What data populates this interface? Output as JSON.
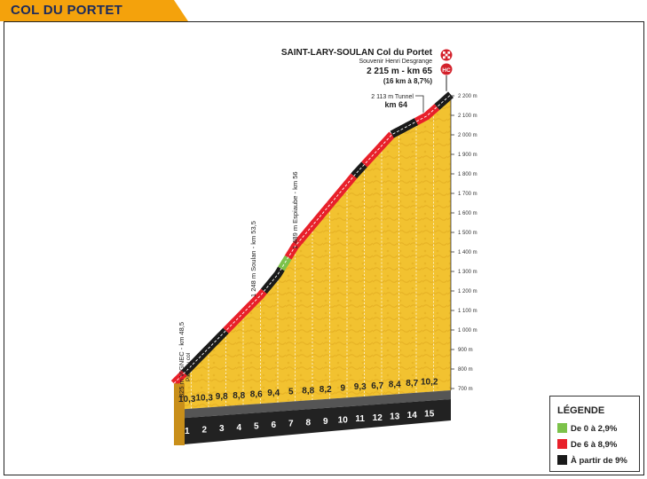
{
  "header": {
    "title": "COL DU PORTET"
  },
  "finish": {
    "name": "SAINT-LARY-SOULAN Col du Portet",
    "subtitle": "Souvenir Henri Desgrange",
    "altitude_km": "2 215 m - km 65",
    "climb": "(16 km à 8,7%)",
    "finish_icon": "checkered-flag-icon",
    "hc_badge": "HC"
  },
  "annotations": [
    {
      "id": "vignec",
      "km": 48.5,
      "altitude": 825,
      "label_main": "825 m VIGNEC - km 48,5",
      "label_sub": "Pied du col"
    },
    {
      "id": "soulan",
      "km": 53.5,
      "altitude": 1248,
      "label_main": "1 248 m Soulan - km 53,5"
    },
    {
      "id": "espiaube",
      "km": 56,
      "altitude": 1489,
      "label_main": "1 489 m Espiaube - km 56"
    },
    {
      "id": "tunnel",
      "km": 64,
      "altitude": 2113,
      "label_main": "2 113 m Tunnel",
      "label_km": "km 64"
    }
  ],
  "legend": {
    "title": "LÉGENDE",
    "items": [
      {
        "label": "De 0 à 2,9%",
        "color": "#7cc24a"
      },
      {
        "label": "De 6 à 8,9%",
        "color": "#e8202a"
      },
      {
        "label": "À partir de 9%",
        "color": "#1a1a1a"
      }
    ]
  },
  "colors": {
    "mountain": "#f2c230",
    "mountain_dark": "#e0a91e",
    "base_front": "#222222",
    "base_top": "#555555",
    "start_block": "#c98f1a"
  },
  "chart_data": {
    "type": "area",
    "title": "COL DU PORTET",
    "x_ticks": [
      "1",
      "2",
      "3",
      "4",
      "5",
      "6",
      "7",
      "8",
      "9",
      "10",
      "11",
      "12",
      "13",
      "14",
      "15"
    ],
    "y_ticks": [
      "700 m",
      "800 m",
      "900 m",
      "1 000 m",
      "1 100 m",
      "1 200 m",
      "1 300 m",
      "1 400 m",
      "1 500 m",
      "1 600 m",
      "1 700 m",
      "1 800 m",
      "1 900 m",
      "2 000 m",
      "2 100 m",
      "2 200 m"
    ],
    "y_range": [
      700,
      2200
    ],
    "x_range_km": [
      0,
      16
    ],
    "gradients": [
      "10,3",
      "10,3",
      "9,8",
      "8,8",
      "8,6",
      "9,4",
      "5",
      "8,8",
      "8,2",
      "9",
      "9,3",
      "6,7",
      "8,4",
      "8,7",
      "10,2"
    ],
    "profile": [
      {
        "km": 0,
        "alt": 825
      },
      {
        "km": 5,
        "alt": 1248
      },
      {
        "km": 6,
        "alt": 1350
      },
      {
        "km": 7,
        "alt": 1489
      },
      {
        "km": 10.5,
        "alt": 1840
      },
      {
        "km": 12.6,
        "alt": 2030
      },
      {
        "km": 14.6,
        "alt": 2113
      },
      {
        "km": 16,
        "alt": 2215
      }
    ],
    "segments": [
      {
        "from": 0,
        "to": 0.6,
        "color": "#e8202a"
      },
      {
        "from": 0.6,
        "to": 3.0,
        "color": "#1a1a1a"
      },
      {
        "from": 3.0,
        "to": 5.2,
        "color": "#e8202a"
      },
      {
        "from": 5.2,
        "to": 6.2,
        "color": "#1a1a1a"
      },
      {
        "from": 6.2,
        "to": 6.6,
        "color": "#7cc24a"
      },
      {
        "from": 6.6,
        "to": 7.2,
        "color": "#e8202a"
      },
      {
        "from": 7.2,
        "to": 9.0,
        "color": "#e8202a"
      },
      {
        "from": 9.0,
        "to": 10.4,
        "color": "#e8202a"
      },
      {
        "from": 10.4,
        "to": 11.0,
        "color": "#1a1a1a"
      },
      {
        "from": 11.0,
        "to": 12.6,
        "color": "#e8202a"
      },
      {
        "from": 12.6,
        "to": 14.0,
        "color": "#1a1a1a"
      },
      {
        "from": 14.0,
        "to": 15.2,
        "color": "#e8202a"
      },
      {
        "from": 15.2,
        "to": 16,
        "color": "#1a1a1a"
      }
    ]
  }
}
